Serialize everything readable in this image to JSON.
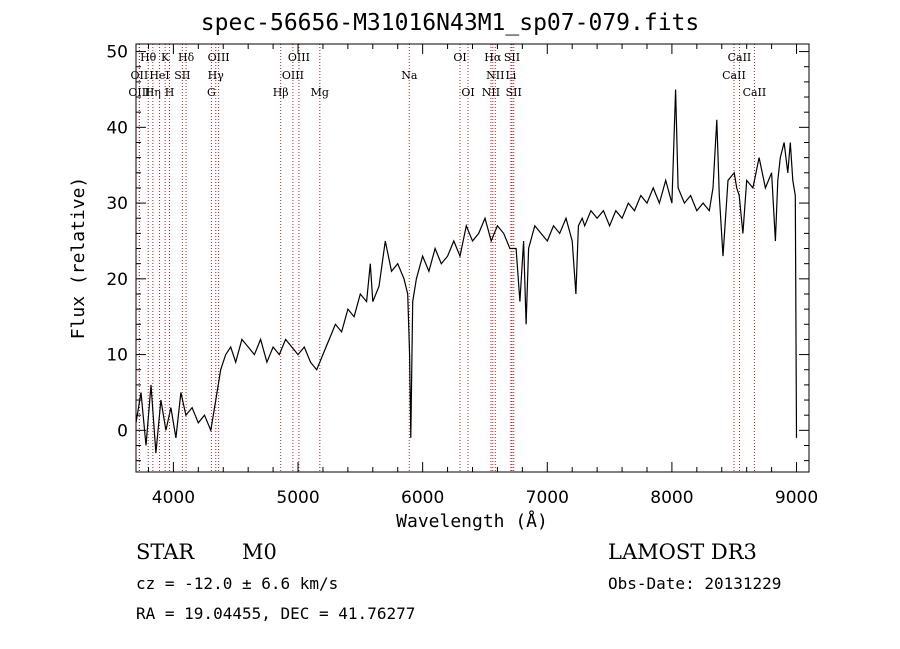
{
  "header": {
    "title": "spec-56656-M31016N43M1_sp07-079.fits"
  },
  "info": {
    "class": "STAR",
    "subclass": "M0",
    "survey": "LAMOST DR3",
    "cz": "cz = -12.0 ± 6.6 km/s",
    "obs_date": "Obs-Date: 20131229",
    "radec": "RA =  19.04455, DEC =  41.76277"
  },
  "chart_data": {
    "type": "line",
    "title": "spec-56656-M31016N43M1_sp07-079.fits",
    "xlabel": "Wavelength (Å)",
    "ylabel": "Flux (relative)",
    "xlim": [
      3700,
      9100
    ],
    "ylim": [
      -5.5,
      51
    ],
    "xticks": [
      4000,
      5000,
      6000,
      7000,
      8000,
      9000
    ],
    "yticks": [
      0,
      10,
      20,
      30,
      40,
      50
    ],
    "series": [
      {
        "name": "flux",
        "color": "#000000",
        "x": [
          3700,
          3740,
          3780,
          3820,
          3860,
          3900,
          3940,
          3980,
          4020,
          4060,
          4100,
          4150,
          4200,
          4250,
          4300,
          4340,
          4380,
          4420,
          4460,
          4500,
          4550,
          4600,
          4650,
          4700,
          4750,
          4800,
          4850,
          4900,
          4950,
          5000,
          5050,
          5100,
          5150,
          5200,
          5250,
          5300,
          5350,
          5400,
          5450,
          5500,
          5550,
          5580,
          5600,
          5650,
          5700,
          5750,
          5800,
          5850,
          5880,
          5895,
          5905,
          5920,
          5950,
          6000,
          6050,
          6100,
          6150,
          6200,
          6250,
          6300,
          6350,
          6400,
          6450,
          6500,
          6550,
          6600,
          6650,
          6700,
          6750,
          6780,
          6810,
          6830,
          6850,
          6900,
          6950,
          7000,
          7050,
          7100,
          7150,
          7200,
          7230,
          7250,
          7280,
          7300,
          7350,
          7400,
          7450,
          7500,
          7550,
          7600,
          7650,
          7700,
          7750,
          7800,
          7850,
          7900,
          7950,
          8000,
          8030,
          8050,
          8100,
          8150,
          8200,
          8250,
          8300,
          8330,
          8360,
          8380,
          8410,
          8450,
          8500,
          8520,
          8540,
          8570,
          8600,
          8650,
          8700,
          8750,
          8800,
          8830,
          8850,
          8870,
          8900,
          8930,
          8950,
          8970,
          8990,
          9000
        ],
        "y": [
          1,
          5,
          -2,
          6,
          -3,
          4,
          0,
          3,
          -1,
          5,
          2,
          3,
          1,
          2,
          0,
          4,
          8,
          10,
          11,
          9,
          12,
          11,
          10,
          12,
          9,
          11,
          10,
          12,
          11,
          10,
          11,
          9,
          8,
          10,
          12,
          14,
          13,
          16,
          15,
          18,
          17,
          22,
          17,
          19,
          25,
          21,
          22,
          20,
          18,
          10,
          -1,
          17,
          20,
          23,
          21,
          24,
          22,
          23,
          25,
          23,
          27,
          25,
          26,
          28,
          25,
          27,
          26,
          24,
          24,
          17,
          25,
          14,
          24,
          27,
          26,
          25,
          27,
          26,
          28,
          25,
          18,
          27,
          28,
          27,
          29,
          28,
          29,
          27,
          29,
          28,
          30,
          29,
          31,
          30,
          32,
          30,
          33,
          30,
          45,
          32,
          30,
          31,
          29,
          30,
          29,
          32,
          41,
          31,
          23,
          33,
          34,
          32,
          31,
          26,
          33,
          32,
          36,
          32,
          34,
          25,
          33,
          36,
          38,
          34,
          38,
          33,
          31,
          -1
        ]
      }
    ],
    "emission_lines": [
      {
        "label": "Hθ",
        "wl": 3798,
        "row": 0
      },
      {
        "label": "OII",
        "wl": 3727,
        "row": 1
      },
      {
        "label": "OIII",
        "wl": 3727,
        "row": 2
      },
      {
        "label": "K",
        "wl": 3934,
        "row": 0
      },
      {
        "label": "HeI",
        "wl": 3889,
        "row": 1
      },
      {
        "label": "Hη",
        "wl": 3835,
        "row": 2
      },
      {
        "label": "Hδ",
        "wl": 4102,
        "row": 0
      },
      {
        "label": "SII",
        "wl": 4072,
        "row": 1
      },
      {
        "label": "H",
        "wl": 3969,
        "row": 2
      },
      {
        "label": "OIII",
        "wl": 4363,
        "row": 0
      },
      {
        "label": "Hγ",
        "wl": 4340,
        "row": 1
      },
      {
        "label": "G",
        "wl": 4305,
        "row": 2
      },
      {
        "label": "OIII",
        "wl": 5007,
        "row": 0
      },
      {
        "label": "OIII",
        "wl": 4959,
        "row": 1
      },
      {
        "label": "Hβ",
        "wl": 4861,
        "row": 2
      },
      {
        "label": "Mg",
        "wl": 5175,
        "row": 2
      },
      {
        "label": "Na",
        "wl": 5893,
        "row": 1
      },
      {
        "label": "OI",
        "wl": 6300,
        "row": 0
      },
      {
        "label": "OI",
        "wl": 6364,
        "row": 2
      },
      {
        "label": "Hα",
        "wl": 6563,
        "row": 0
      },
      {
        "label": "NII",
        "wl": 6583,
        "row": 1
      },
      {
        "label": "NII",
        "wl": 6548,
        "row": 2
      },
      {
        "label": "SII",
        "wl": 6717,
        "row": 0
      },
      {
        "label": "Li",
        "wl": 6708,
        "row": 1
      },
      {
        "label": "SII",
        "wl": 6731,
        "row": 2
      },
      {
        "label": "CaII",
        "wl": 8542,
        "row": 0
      },
      {
        "label": "CaII",
        "wl": 8498,
        "row": 1
      },
      {
        "label": "CaII",
        "wl": 8662,
        "row": 2
      }
    ]
  }
}
